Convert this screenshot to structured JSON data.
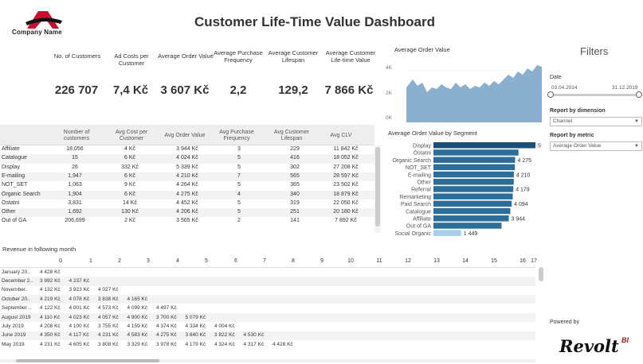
{
  "header": {
    "company_name": "Company Name",
    "title": "Customer Life-Time Value Dashboard"
  },
  "kpis": [
    {
      "label": "No. of Customers",
      "value": "226 707"
    },
    {
      "label": "Ad Costs per Customer",
      "value": "7,4 Kč"
    },
    {
      "label": "Average Order Value",
      "value": "3 607 Kč"
    },
    {
      "label": "Average Purchase Frequency",
      "value": "2,2"
    },
    {
      "label": "Average Customer Lifespan",
      "value": "129,2"
    },
    {
      "label": "Average Customer Life-time Value",
      "value": "7 866 Kč"
    }
  ],
  "aov_chart": {
    "title": "Average Order Value",
    "y_ticks": [
      "4K",
      "2K",
      "0K"
    ],
    "color": "#8bafcf"
  },
  "filters": {
    "title": "Filters",
    "date_label": "Date",
    "date_from": "03.04.2014",
    "date_to": "31.12.2019",
    "dimension_label": "Report by dimension",
    "dimension_value": "Channel",
    "metric_label": "Report by metric",
    "metric_value": "Average Order Value"
  },
  "table": {
    "headers": [
      "Number of customers",
      "Avg Cost per Customer",
      "Avg Order Value",
      "Avg Purchase Frequency",
      "Avg Customer Lifespan",
      "Avg CLV"
    ],
    "rows": [
      {
        "name": "Affiliate",
        "cells": [
          "18,056",
          "4 Kč",
          "3 944 Kč",
          "3",
          "229",
          "11 842 Kč"
        ]
      },
      {
        "name": "Catalogue",
        "cells": [
          "15",
          "6 Kč",
          "4 024 Kč",
          "5",
          "416",
          "18 052 Kč"
        ]
      },
      {
        "name": "Display",
        "cells": [
          "26",
          "332 Kč",
          "5 339 Kč",
          "5",
          "302",
          "27 208 Kč"
        ]
      },
      {
        "name": "E-mailing",
        "cells": [
          "1,947",
          "6 Kč",
          "4 210 Kč",
          "7",
          "565",
          "28 597 Kč"
        ]
      },
      {
        "name": "NOT_SET",
        "cells": [
          "1,063",
          "9 Kč",
          "4 264 Kč",
          "5",
          "365",
          "23 502 Kč"
        ]
      },
      {
        "name": "Organic Search",
        "cells": [
          "1,904",
          "6 Kč",
          "4 275 Kč",
          "4",
          "340",
          "18 879 Kč"
        ]
      },
      {
        "name": "Ostatni",
        "cells": [
          "3,831",
          "14 Kč",
          "4 452 Kč",
          "5",
          "319",
          "22 050 Kč"
        ]
      },
      {
        "name": "Other",
        "cells": [
          "1,692",
          "130 Kč",
          "4 206 Kč",
          "5",
          "251",
          "20 180 Kč"
        ]
      },
      {
        "name": "Out of GA",
        "cells": [
          "206,699",
          "2 Kč",
          "3 565 Kč",
          "2",
          "141",
          "7 892 Kč"
        ]
      }
    ]
  },
  "segments": {
    "title": "Average Order Value by Segment",
    "items": [
      {
        "name": "Display",
        "value": 5339,
        "label": "5 339",
        "highlight": true
      },
      {
        "name": "Ostatni",
        "value": 4452,
        "label": ""
      },
      {
        "name": "Organic Search",
        "value": 4275,
        "label": "4 275"
      },
      {
        "name": "NOT_SET",
        "value": 4264,
        "label": ""
      },
      {
        "name": "E-mailing",
        "value": 4210,
        "label": "4 210"
      },
      {
        "name": "Other",
        "value": 4206,
        "label": ""
      },
      {
        "name": "Referral",
        "value": 4179,
        "label": "4 179"
      },
      {
        "name": "Remarketing",
        "value": 4150,
        "label": ""
      },
      {
        "name": "Paid Search",
        "value": 4094,
        "label": "4 094"
      },
      {
        "name": "Catalogue",
        "value": 4024,
        "label": ""
      },
      {
        "name": "Affiliate",
        "value": 3944,
        "label": "3 944"
      },
      {
        "name": "Out of GA",
        "value": 3565,
        "label": ""
      },
      {
        "name": "Social Organic",
        "value": 1449,
        "label": "1 449",
        "light": true
      }
    ],
    "bar_color": "#2c6e99",
    "top_color": "#1b4f76",
    "light_color": "#a8d0e8"
  },
  "cohort": {
    "title": "Revenue in following month",
    "columns": [
      "0",
      "1",
      "2",
      "3",
      "4",
      "5",
      "6",
      "7",
      "8",
      "9",
      "10",
      "11",
      "12",
      "13",
      "14",
      "15",
      "16",
      "17"
    ],
    "rows": [
      {
        "label": "January 20..",
        "values": [
          "4 428 Kč"
        ]
      },
      {
        "label": "December 2..",
        "values": [
          "3 992 Kč",
          "4 237 Kč"
        ]
      },
      {
        "label": "November..",
        "values": [
          "4 132 Kč",
          "3 923 Kč",
          "4 027 Kč"
        ]
      },
      {
        "label": "October 20..",
        "values": [
          "4 219 Kč",
          "4 078 Kč",
          "3 838 Kč",
          "4 165 Kč"
        ]
      },
      {
        "label": "September ..",
        "values": [
          "4 122 Kč",
          "4 001 Kč",
          "4 573 Kč",
          "4 099 Kč",
          "4 497 Kč"
        ]
      },
      {
        "label": "August 2019",
        "values": [
          "4 110 Kč",
          "4 023 Kč",
          "4 057 Kč",
          "4 900 Kč",
          "3 700 Kč",
          "5 079 Kč"
        ]
      },
      {
        "label": "July 2019",
        "values": [
          "4 208 Kč",
          "4 100 Kč",
          "3 755 Kč",
          "4 159 Kč",
          "4 374 Kč",
          "4 334 Kč",
          "4 004 Kč"
        ]
      },
      {
        "label": "June 2019",
        "values": [
          "4 350 Kč",
          "4 117 Kč",
          "4 231 Kč",
          "4 583 Kč",
          "4 275 Kč",
          "3 840 Kč",
          "3 822 Kč",
          "4 530 Kč"
        ]
      },
      {
        "label": "May 2019",
        "values": [
          "4 231 Kč",
          "4 605 Kč",
          "3 808 Kč",
          "3 329 Kč",
          "3 978 Kč",
          "4 179 Kč",
          "4 324 Kč",
          "4 317 Kč",
          "4 428 Kč"
        ]
      }
    ]
  },
  "footer": {
    "powered_by": "Powered by",
    "brand": "Revolt",
    "brand_suffix": "BI"
  }
}
